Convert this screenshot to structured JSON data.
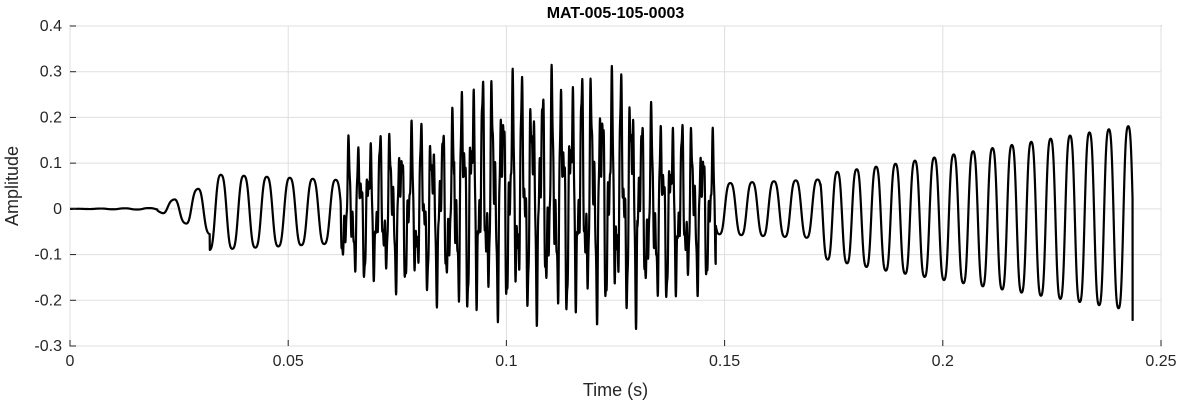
{
  "chart_data": {
    "type": "line",
    "title": "MAT-005-105-0003",
    "xlabel": "Time (s)",
    "ylabel": "Amplitude",
    "xlim": [
      0,
      0.25
    ],
    "ylim": [
      -0.3,
      0.4
    ],
    "xticks": [
      0,
      0.05,
      0.1,
      0.15,
      0.2,
      0.25
    ],
    "xtick_labels": [
      "0",
      "0.05",
      "0.1",
      "0.15",
      "0.2",
      "0.25"
    ],
    "yticks": [
      -0.3,
      -0.2,
      -0.1,
      0,
      0.1,
      0.2,
      0.3,
      0.4
    ],
    "ytick_labels": [
      "-0.3",
      "-0.2",
      "-0.1",
      "0",
      "0.1",
      "0.2",
      "0.3",
      "0.4"
    ],
    "grid": true,
    "series": [
      {
        "color": "#000000",
        "segments": [
          {
            "t0": 0.0,
            "t1": 0.02,
            "freq": 180,
            "amp_start": 0.0,
            "amp_end": 0.002,
            "offset": 0.0
          },
          {
            "t0": 0.02,
            "t1": 0.032,
            "freq": 180,
            "amp_start": 0.005,
            "amp_end": 0.06,
            "offset": 0.0
          },
          {
            "t0": 0.032,
            "t1": 0.062,
            "freq": 190,
            "amp_start": 0.09,
            "amp_end": 0.075,
            "offset": -0.01
          },
          {
            "t0": 0.062,
            "t1": 0.088,
            "freq": 420,
            "amp_start": 0.14,
            "amp_end": 0.2,
            "offset": 0.0
          },
          {
            "t0": 0.088,
            "t1": 0.13,
            "freq": 440,
            "amp_start": 0.25,
            "amp_end": 0.26,
            "offset": 0.03
          },
          {
            "t0": 0.13,
            "t1": 0.148,
            "freq": 430,
            "amp_start": 0.22,
            "amp_end": 0.16,
            "offset": 0.0
          },
          {
            "t0": 0.148,
            "t1": 0.172,
            "freq": 200,
            "amp_start": 0.06,
            "amp_end": 0.07,
            "offset": 0.0
          },
          {
            "t0": 0.172,
            "t1": 0.2435,
            "freq": 225,
            "amp_start": 0.1,
            "amp_end": 0.22,
            "offset": -0.02
          }
        ]
      }
    ],
    "time_end": 0.2435,
    "end_value": -0.245
  }
}
